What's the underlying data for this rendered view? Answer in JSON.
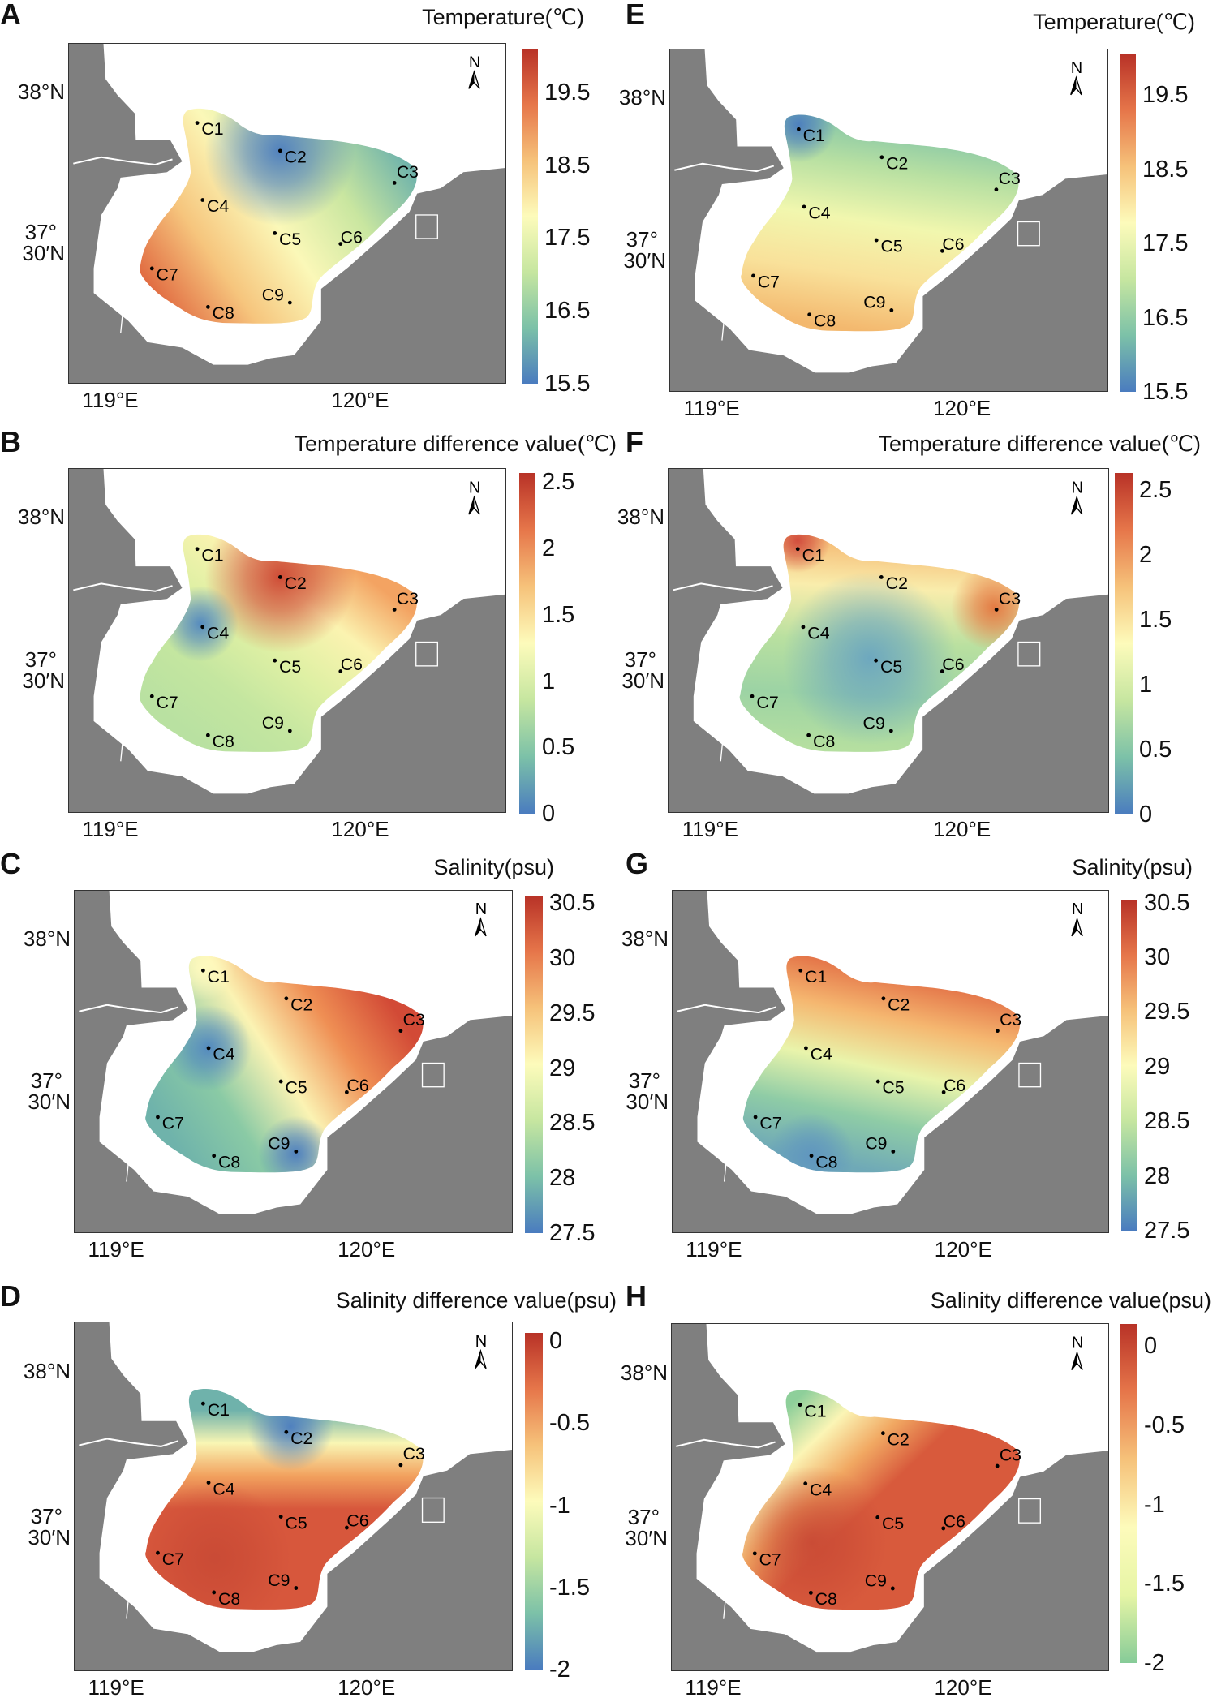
{
  "colors": {
    "land": "#7f7f7f",
    "sea": "#ffffff",
    "colormap_spectral": [
      "#4a7cbf",
      "#7cc1a8",
      "#c6e6a0",
      "#fdfbbb",
      "#f6c27a",
      "#e6764a",
      "#b83227"
    ],
    "colormap_green_red": [
      "#86cb98",
      "#e6f5a5",
      "#fdfbbb",
      "#f6c27a",
      "#e6764a",
      "#b83227"
    ]
  },
  "panels": [
    {
      "letter": "A",
      "title": "Temperature(℃)",
      "north": "N",
      "lat_labels": [
        "38°N",
        "37°",
        "30′N"
      ],
      "lon_labels": [
        "119°E",
        "120°E"
      ],
      "stations": [
        "C1",
        "C2",
        "C3",
        "C4",
        "C5",
        "C6",
        "C7",
        "C8",
        "C9"
      ],
      "colorbar": {
        "colormap": "spectral",
        "range": [
          15.5,
          20.1
        ],
        "ticks": [
          {
            "value": 19.5,
            "label": "19.5"
          },
          {
            "value": 18.5,
            "label": "18.5"
          },
          {
            "value": 17.5,
            "label": "17.5"
          },
          {
            "value": 16.5,
            "label": "16.5"
          },
          {
            "value": 15.5,
            "label": "15.5"
          }
        ]
      }
    },
    {
      "letter": "B",
      "title": "Temperature difference value(℃)",
      "north": "N",
      "lat_labels": [
        "38°N",
        "37°",
        "30′N"
      ],
      "lon_labels": [
        "119°E",
        "120°E"
      ],
      "stations": [
        "C1",
        "C2",
        "C3",
        "C4",
        "C5",
        "C6",
        "C7",
        "C8",
        "C9"
      ],
      "colorbar": {
        "colormap": "spectral",
        "range": [
          0,
          2.57
        ],
        "ticks": [
          {
            "value": 2.5,
            "label": "2.5"
          },
          {
            "value": 2,
            "label": "2"
          },
          {
            "value": 1.5,
            "label": "1.5"
          },
          {
            "value": 1,
            "label": "1"
          },
          {
            "value": 0.5,
            "label": "0.5"
          },
          {
            "value": 0,
            "label": "0"
          }
        ]
      }
    },
    {
      "letter": "C",
      "title": "Salinity(psu)",
      "north": "N",
      "lat_labels": [
        "38°N",
        "37°",
        "30′N"
      ],
      "lon_labels": [
        "119°E",
        "120°E"
      ],
      "stations": [
        "C1",
        "C2",
        "C3",
        "C4",
        "C5",
        "C6",
        "C7",
        "C8",
        "C9"
      ],
      "colorbar": {
        "colormap": "spectral",
        "range": [
          27.5,
          30.57
        ],
        "ticks": [
          {
            "value": 30.5,
            "label": "30.5"
          },
          {
            "value": 30,
            "label": "30"
          },
          {
            "value": 29.5,
            "label": "29.5"
          },
          {
            "value": 29,
            "label": "29"
          },
          {
            "value": 28.5,
            "label": "28.5"
          },
          {
            "value": 28,
            "label": "28"
          },
          {
            "value": 27.5,
            "label": "27.5"
          }
        ]
      }
    },
    {
      "letter": "D",
      "title": "Salinity difference value(psu)",
      "north": "N",
      "lat_labels": [
        "38°N",
        "37°",
        "30′N"
      ],
      "lon_labels": [
        "119°E",
        "120°E"
      ],
      "stations": [
        "C1",
        "C2",
        "C3",
        "C4",
        "C5",
        "C6",
        "C7",
        "C8",
        "C9"
      ],
      "colorbar": {
        "colormap": "spectral",
        "range": [
          -2,
          0.05
        ],
        "ticks": [
          {
            "value": 0,
            "label": "0"
          },
          {
            "value": -0.5,
            "label": "-0.5"
          },
          {
            "value": -1,
            "label": "-1"
          },
          {
            "value": -1.5,
            "label": "-1.5"
          },
          {
            "value": -2,
            "label": "-2"
          }
        ]
      }
    },
    {
      "letter": "E",
      "title": "Temperature(℃)",
      "north": "N",
      "lat_labels": [
        "38°N",
        "37°",
        "30′N"
      ],
      "lon_labels": [
        "119°E",
        "120°E"
      ],
      "stations": [
        "C1",
        "C2",
        "C3",
        "C4",
        "C5",
        "C6",
        "C7",
        "C8",
        "C9"
      ],
      "colorbar": {
        "colormap": "spectral",
        "range": [
          15.5,
          20.05
        ],
        "ticks": [
          {
            "value": 19.5,
            "label": "19.5"
          },
          {
            "value": 18.5,
            "label": "18.5"
          },
          {
            "value": 17.5,
            "label": "17.5"
          },
          {
            "value": 16.5,
            "label": "16.5"
          },
          {
            "value": 15.5,
            "label": "15.5"
          }
        ]
      }
    },
    {
      "letter": "F",
      "title": "Temperature difference value(℃)",
      "north": "N",
      "lat_labels": [
        "38°N",
        "37°",
        "30′N"
      ],
      "lon_labels": [
        "119°E",
        "120°E"
      ],
      "stations": [
        "C1",
        "C2",
        "C3",
        "C4",
        "C5",
        "C6",
        "C7",
        "C8",
        "C9"
      ],
      "colorbar": {
        "colormap": "spectral",
        "range": [
          0,
          2.63
        ],
        "ticks": [
          {
            "value": 2.5,
            "label": "2.5"
          },
          {
            "value": 2,
            "label": "2"
          },
          {
            "value": 1.5,
            "label": "1.5"
          },
          {
            "value": 1,
            "label": "1"
          },
          {
            "value": 0.5,
            "label": "0.5"
          },
          {
            "value": 0,
            "label": "0"
          }
        ]
      }
    },
    {
      "letter": "G",
      "title": "Salinity(psu)",
      "north": "N",
      "lat_labels": [
        "38°N",
        "37°",
        "30′N"
      ],
      "lon_labels": [
        "119°E",
        "120°E"
      ],
      "stations": [
        "C1",
        "C2",
        "C3",
        "C4",
        "C5",
        "C6",
        "C7",
        "C8",
        "C9"
      ],
      "colorbar": {
        "colormap": "spectral",
        "range": [
          27.5,
          30.52
        ],
        "ticks": [
          {
            "value": 30.5,
            "label": "30.5"
          },
          {
            "value": 30,
            "label": "30"
          },
          {
            "value": 29.5,
            "label": "29.5"
          },
          {
            "value": 29,
            "label": "29"
          },
          {
            "value": 28.5,
            "label": "28.5"
          },
          {
            "value": 28,
            "label": "28"
          },
          {
            "value": 27.5,
            "label": "27.5"
          }
        ]
      }
    },
    {
      "letter": "H",
      "title": "Salinity difference value(psu)",
      "north": "N",
      "lat_labels": [
        "38°N",
        "37°",
        "30′N"
      ],
      "lon_labels": [
        "119°E",
        "120°E"
      ],
      "stations": [
        "C1",
        "C2",
        "C3",
        "C4",
        "C5",
        "C6",
        "C7",
        "C8",
        "C9"
      ],
      "colorbar": {
        "colormap": "green_red",
        "range": [
          -2,
          0.14
        ],
        "ticks": [
          {
            "value": 0,
            "label": "0"
          },
          {
            "value": -0.5,
            "label": "-0.5"
          },
          {
            "value": -1,
            "label": "-1"
          },
          {
            "value": -1.5,
            "label": "-1.5"
          },
          {
            "value": -2,
            "label": "-2"
          }
        ]
      }
    }
  ]
}
